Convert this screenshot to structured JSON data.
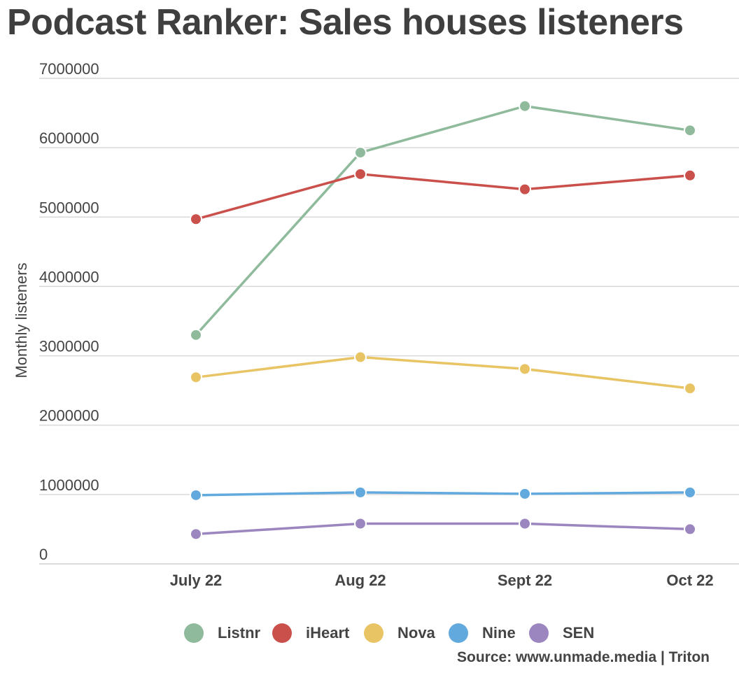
{
  "title": "Podcast Ranker: Sales houses listeners",
  "source": "Source: www.unmade.media | Triton",
  "chart_data": {
    "type": "line",
    "title": "Podcast Ranker: Sales houses listeners",
    "xlabel": "",
    "ylabel": "Monthly listeners",
    "categories": [
      "July 22",
      "Aug 22",
      "Sept 22",
      "Oct 22"
    ],
    "ylim": [
      0,
      7000000
    ],
    "yticks": [
      "0",
      "1000000",
      "2000000",
      "3000000",
      "4000000",
      "5000000",
      "6000000",
      "7000000"
    ],
    "grid": true,
    "legend_position": "bottom",
    "series": [
      {
        "name": "Listnr",
        "color": "#8fba9c",
        "values": [
          3300000,
          5930000,
          6600000,
          6250000
        ]
      },
      {
        "name": "iHeart",
        "color": "#c9504b",
        "values": [
          4970000,
          5620000,
          5400000,
          5600000
        ]
      },
      {
        "name": "Nova",
        "color": "#e8c465",
        "values": [
          2690000,
          2980000,
          2810000,
          2530000
        ]
      },
      {
        "name": "Nine",
        "color": "#62a9de",
        "values": [
          990000,
          1030000,
          1010000,
          1030000
        ]
      },
      {
        "name": "SEN",
        "color": "#9b86bf",
        "values": [
          430000,
          580000,
          580000,
          500000
        ]
      }
    ]
  }
}
